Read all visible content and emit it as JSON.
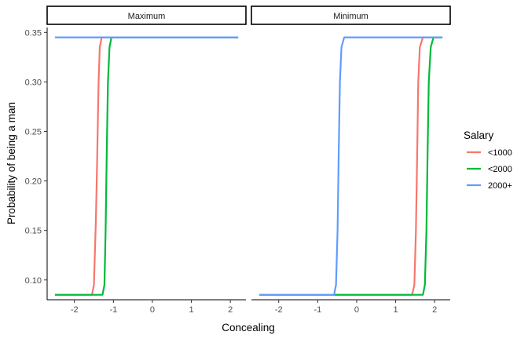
{
  "chart_data": {
    "type": "line",
    "xlabel": "Concealing",
    "ylabel": "Probability of being a man",
    "xlim": [
      -2.7,
      2.4
    ],
    "ylim": [
      0.08,
      0.355
    ],
    "x_ticks": [
      -2,
      -1,
      0,
      1,
      2
    ],
    "y_ticks": [
      0.1,
      0.15,
      0.2,
      0.25,
      0.3,
      0.35
    ],
    "y_tick_labels": [
      "0.10",
      "0.15",
      "0.20",
      "0.25",
      "0.30",
      "0.35"
    ],
    "grid": false,
    "legend": {
      "title": "Salary",
      "position": "right",
      "entries": [
        {
          "label": "<1000",
          "color": "#F8766D"
        },
        {
          "label": "<2000",
          "color": "#00BA38"
        },
        {
          "label": "2000+",
          "color": "#619CFF"
        }
      ]
    },
    "panels": [
      {
        "name": "Maximum",
        "series": [
          {
            "name": "<1000",
            "color": "#F8766D",
            "x": [
              -2.5,
              -1.55,
              -1.5,
              -1.45,
              -1.42,
              -1.38,
              -1.35,
              -1.3,
              2.2
            ],
            "y": [
              0.085,
              0.085,
              0.095,
              0.16,
              0.215,
              0.3,
              0.335,
              0.345,
              0.345
            ]
          },
          {
            "name": "<2000",
            "color": "#00BA38",
            "x": [
              -2.5,
              -1.28,
              -1.23,
              -1.2,
              -1.17,
              -1.14,
              -1.1,
              -1.05,
              2.2
            ],
            "y": [
              0.085,
              0.085,
              0.095,
              0.15,
              0.23,
              0.3,
              0.335,
              0.345,
              0.345
            ]
          },
          {
            "name": "2000+",
            "color": "#619CFF",
            "x": [
              -2.5,
              2.2
            ],
            "y": [
              0.345,
              0.345
            ]
          }
        ]
      },
      {
        "name": "Minimum",
        "series": [
          {
            "name": "<1000",
            "color": "#F8766D",
            "x": [
              -2.5,
              1.42,
              1.48,
              1.52,
              1.55,
              1.58,
              1.62,
              1.7,
              2.2
            ],
            "y": [
              0.085,
              0.085,
              0.095,
              0.15,
              0.22,
              0.3,
              0.335,
              0.345,
              0.345
            ]
          },
          {
            "name": "<2000",
            "color": "#00BA38",
            "x": [
              -2.5,
              1.7,
              1.75,
              1.79,
              1.82,
              1.85,
              1.9,
              1.97,
              2.2
            ],
            "y": [
              0.085,
              0.085,
              0.095,
              0.15,
              0.23,
              0.3,
              0.335,
              0.345,
              0.345
            ]
          },
          {
            "name": "2000+",
            "color": "#619CFF",
            "x": [
              -2.5,
              -0.58,
              -0.53,
              -0.49,
              -0.46,
              -0.43,
              -0.39,
              -0.32,
              2.2
            ],
            "y": [
              0.085,
              0.085,
              0.095,
              0.15,
              0.23,
              0.3,
              0.335,
              0.345,
              0.345
            ]
          }
        ]
      }
    ]
  }
}
